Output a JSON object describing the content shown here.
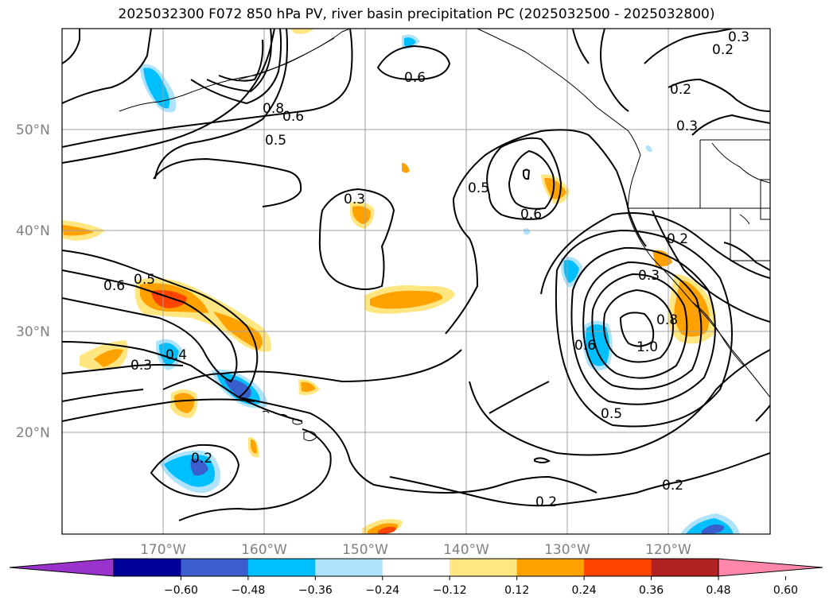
{
  "title": "2025032300 F072 850 hPa PV, river basin precipitation PC (2025032500 - 2025032800)",
  "lat_labels": [
    "50°N",
    "40°N",
    "30°N",
    "20°N"
  ],
  "lon_labels": [
    "170°W",
    "160°W",
    "150°W",
    "140°W",
    "130°W",
    "120°W"
  ],
  "contour_labels": [
    "0.3",
    "0.2",
    "0.2",
    "0.3",
    "0.6",
    "0.8",
    "0.6",
    "0.5",
    "0.3",
    "0.5",
    "0.6",
    "0.2",
    "0.3",
    "0.6",
    "0.5",
    "0.4",
    "0.3",
    "0.6",
    "1.0",
    "0.8",
    "0.5",
    "0.2",
    "0.2",
    "0.2"
  ],
  "colorbar": {
    "ticks": [
      "−0.60",
      "−0.48",
      "−0.36",
      "−0.24",
      "−0.12",
      "0.12",
      "0.24",
      "0.36",
      "0.48",
      "0.60"
    ],
    "colors": [
      "#9933cc",
      "#000099",
      "#3a5fcd",
      "#00bfff",
      "#aee3fb",
      "#ffffff",
      "#ffe680",
      "#ffa200",
      "#ff4500",
      "#b22222",
      "#ff88aa"
    ]
  },
  "palette": {
    "pos_1": "#ffe680",
    "pos_2": "#ffa200",
    "pos_3": "#ff4500",
    "neg_1": "#aee3fb",
    "neg_2": "#00bfff",
    "neg_3": "#3a5fcd",
    "grid": "#a0a0a0"
  }
}
